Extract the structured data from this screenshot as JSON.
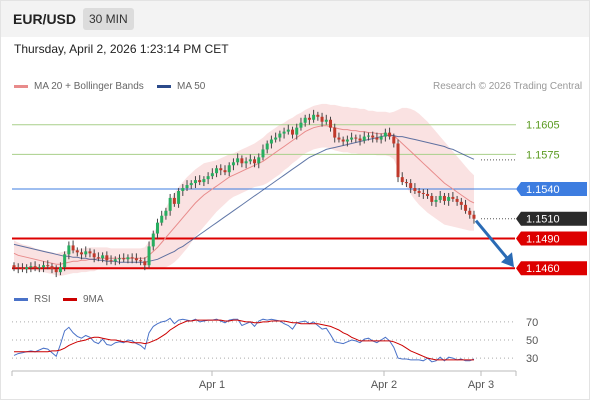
{
  "header": {
    "pair": "EUR/USD",
    "timeframe": "30 MIN",
    "datetime": "Thursday, April 2, 2026 1:23:14 PM CET"
  },
  "legend": {
    "ma20": "MA 20 + Bollinger Bands",
    "ma50": "MA 50",
    "copyright": "Research © 2026 Trading Central"
  },
  "rsi_legend": {
    "rsi": "RSI",
    "ma": "9MA"
  },
  "colors": {
    "bull": "#27ae60",
    "bear": "#c0392b",
    "ma20": "#e88b8b",
    "ma50": "#2b4a8a",
    "band": "#f6caca",
    "resistance": "#a8cf8a",
    "resistance_text": "#5a9a1f",
    "pivot": "#3d7de0",
    "support": "#dd0000",
    "last": "#2b2b2b",
    "arrow": "#2a6bb5",
    "rsi": "#4a72c8",
    "rsi_ma": "#cc0000"
  },
  "chart_data": [
    {
      "type": "candlestick",
      "title": "EUR/USD",
      "timeframe": "30 MIN",
      "ylim": [
        1.1442,
        1.1634
      ],
      "x_tick_labels": [
        "Apr 1",
        "Apr 2",
        "Apr 3"
      ],
      "closes": [
        1.1461,
        1.146,
        1.1459,
        1.1461,
        1.1462,
        1.146,
        1.1461,
        1.1463,
        1.1462,
        1.1459,
        1.1456,
        1.1461,
        1.1474,
        1.1483,
        1.1478,
        1.1476,
        1.1474,
        1.1477,
        1.1475,
        1.1471,
        1.147,
        1.1473,
        1.1468,
        1.1467,
        1.1469,
        1.147,
        1.1469,
        1.1471,
        1.147,
        1.1468,
        1.1467,
        1.1463,
        1.1482,
        1.1495,
        1.1506,
        1.1513,
        1.1518,
        1.1531,
        1.1525,
        1.1538,
        1.1541,
        1.1544,
        1.1546,
        1.1549,
        1.1547,
        1.155,
        1.1553,
        1.1556,
        1.1561,
        1.1559,
        1.1557,
        1.1564,
        1.1567,
        1.1571,
        1.1566,
        1.1568,
        1.157,
        1.1566,
        1.1572,
        1.158,
        1.1586,
        1.159,
        1.1592,
        1.1596,
        1.1598,
        1.16,
        1.1595,
        1.1602,
        1.1607,
        1.1612,
        1.161,
        1.1615,
        1.1613,
        1.1608,
        1.161,
        1.1602,
        1.1592,
        1.159,
        1.1588,
        1.159,
        1.1592,
        1.1591,
        1.1589,
        1.1593,
        1.1594,
        1.1592,
        1.159,
        1.1593,
        1.1597,
        1.1593,
        1.1586,
        1.1552,
        1.1547,
        1.1546,
        1.1541,
        1.1538,
        1.1536,
        1.1535,
        1.1533,
        1.1527,
        1.1529,
        1.1533,
        1.1528,
        1.1532,
        1.153,
        1.1527,
        1.1524,
        1.1518,
        1.1514,
        1.151
      ],
      "ma20": [
        1.1475,
        1.1473,
        1.1472,
        1.1471,
        1.147,
        1.1469,
        1.1468,
        1.1467,
        1.1466,
        1.1465,
        1.1464,
        1.1464,
        1.1465,
        1.1466,
        1.1467,
        1.1467,
        1.1468,
        1.1468,
        1.1469,
        1.1469,
        1.147,
        1.147,
        1.147,
        1.147,
        1.147,
        1.147,
        1.147,
        1.147,
        1.147,
        1.147,
        1.147,
        1.147,
        1.1473,
        1.1477,
        1.1481,
        1.1486,
        1.1491,
        1.1496,
        1.1501,
        1.1506,
        1.1511,
        1.1516,
        1.1521,
        1.1526,
        1.153,
        1.1534,
        1.1537,
        1.154,
        1.1543,
        1.1546,
        1.1549,
        1.1552,
        1.1554,
        1.1556,
        1.1558,
        1.156,
        1.1562,
        1.1564,
        1.1566,
        1.1568,
        1.1571,
        1.1574,
        1.1577,
        1.158,
        1.1583,
        1.1586,
        1.1589,
        1.1592,
        1.1595,
        1.1598,
        1.16,
        1.1602,
        1.1603,
        1.1604,
        1.1604,
        1.1603,
        1.1602,
        1.1601,
        1.16,
        1.16,
        1.1599,
        1.1599,
        1.1598,
        1.1598,
        1.1597,
        1.1597,
        1.1596,
        1.1596,
        1.1596,
        1.1595,
        1.1594,
        1.159,
        1.1586,
        1.1582,
        1.1578,
        1.1574,
        1.157,
        1.1566,
        1.1562,
        1.1558,
        1.1554,
        1.155,
        1.1546,
        1.1543,
        1.154,
        1.1537,
        1.1534,
        1.1531,
        1.1528,
        1.1526
      ],
      "ma50": [
        1.1484,
        1.1483,
        1.1482,
        1.1481,
        1.148,
        1.1479,
        1.1478,
        1.1477,
        1.1476,
        1.1475,
        1.1474,
        1.1473,
        1.1472,
        1.1472,
        1.1471,
        1.1471,
        1.147,
        1.147,
        1.1469,
        1.1469,
        1.1468,
        1.1468,
        1.1467,
        1.1467,
        1.1467,
        1.1466,
        1.1466,
        1.1466,
        1.1466,
        1.1466,
        1.1466,
        1.1466,
        1.1467,
        1.1468,
        1.1469,
        1.1471,
        1.1473,
        1.1475,
        1.1477,
        1.148,
        1.1482,
        1.1485,
        1.1488,
        1.1491,
        1.1494,
        1.1497,
        1.15,
        1.1503,
        1.1506,
        1.1509,
        1.1512,
        1.1515,
        1.1518,
        1.1521,
        1.1524,
        1.1527,
        1.153,
        1.1533,
        1.1536,
        1.1539,
        1.1542,
        1.1545,
        1.1548,
        1.1551,
        1.1554,
        1.1557,
        1.156,
        1.1563,
        1.1566,
        1.1569,
        1.1572,
        1.1574,
        1.1576,
        1.1578,
        1.158,
        1.1581,
        1.1582,
        1.1583,
        1.1584,
        1.1585,
        1.1586,
        1.1587,
        1.1588,
        1.1589,
        1.159,
        1.1591,
        1.1592,
        1.1593,
        1.1594,
        1.1594,
        1.1594,
        1.1593,
        1.1593,
        1.1592,
        1.1591,
        1.159,
        1.1589,
        1.1588,
        1.1587,
        1.1586,
        1.1585,
        1.1584,
        1.1583,
        1.1581,
        1.158,
        1.1578,
        1.1576,
        1.1574,
        1.1572,
        1.157
      ],
      "band_width": [
        0.0013,
        0.0013,
        0.0012,
        0.0012,
        0.0012,
        0.0011,
        0.0011,
        0.0011,
        0.0011,
        0.0011,
        0.0011,
        0.0012,
        0.0012,
        0.0012,
        0.0012,
        0.0012,
        0.0012,
        0.0012,
        0.0012,
        0.0012,
        0.0011,
        0.0011,
        0.0011,
        0.001,
        0.001,
        0.001,
        0.001,
        0.001,
        0.001,
        0.001,
        0.001,
        0.0011,
        0.0014,
        0.0018,
        0.0022,
        0.0026,
        0.003,
        0.0033,
        0.0035,
        0.0036,
        0.0036,
        0.0036,
        0.0035,
        0.0034,
        0.0033,
        0.0032,
        0.003,
        0.0028,
        0.0026,
        0.0025,
        0.0024,
        0.0023,
        0.0022,
        0.0022,
        0.0022,
        0.0022,
        0.0022,
        0.0022,
        0.0023,
        0.0024,
        0.0025,
        0.0025,
        0.0025,
        0.0025,
        0.0024,
        0.0024,
        0.0023,
        0.0023,
        0.0022,
        0.0022,
        0.0022,
        0.0022,
        0.0022,
        0.0022,
        0.0022,
        0.0022,
        0.0023,
        0.0023,
        0.0023,
        0.0023,
        0.0023,
        0.0023,
        0.0023,
        0.0023,
        0.0022,
        0.0022,
        0.0022,
        0.0022,
        0.0022,
        0.0022,
        0.0024,
        0.003,
        0.0036,
        0.004,
        0.0043,
        0.0045,
        0.0046,
        0.0046,
        0.0046,
        0.0045,
        0.0044,
        0.0043,
        0.0042,
        0.004,
        0.0038,
        0.0036,
        0.0034,
        0.0032,
        0.003,
        0.0028
      ],
      "levels": [
        {
          "label": "1.1605",
          "value": 1.1605,
          "kind": "resistance"
        },
        {
          "label": "1.1575",
          "value": 1.1575,
          "kind": "resistance"
        },
        {
          "label": "1.1540",
          "value": 1.154,
          "kind": "pivot"
        },
        {
          "label": "1.1510",
          "value": 1.151,
          "kind": "last"
        },
        {
          "label": "1.1490",
          "value": 1.149,
          "kind": "support"
        },
        {
          "label": "1.1460",
          "value": 1.146,
          "kind": "support"
        }
      ],
      "forecast_arrow": {
        "from": 1.151,
        "to": 1.146,
        "direction": "down"
      }
    },
    {
      "type": "line",
      "title": "RSI",
      "series": [
        {
          "name": "RSI",
          "values": [
            33,
            35,
            36,
            37,
            38,
            37,
            39,
            41,
            40,
            36,
            32,
            45,
            60,
            64,
            58,
            54,
            52,
            55,
            53,
            48,
            46,
            51,
            45,
            44,
            47,
            48,
            47,
            50,
            49,
            46,
            44,
            40,
            58,
            65,
            68,
            70,
            71,
            74,
            68,
            72,
            73,
            72,
            71,
            73,
            70,
            71,
            72,
            72,
            73,
            71,
            69,
            72,
            73,
            73,
            66,
            68,
            70,
            65,
            71,
            73,
            72,
            73,
            72,
            71,
            68,
            66,
            62,
            69,
            70,
            71,
            68,
            70,
            66,
            62,
            63,
            56,
            48,
            47,
            46,
            48,
            50,
            49,
            47,
            51,
            52,
            49,
            47,
            50,
            53,
            49,
            42,
            30,
            29,
            29,
            28,
            28,
            28,
            27,
            30,
            26,
            27,
            31,
            27,
            31,
            30,
            28,
            29,
            27,
            27,
            29
          ]
        },
        {
          "name": "9MA",
          "values": [
            37,
            37,
            37,
            37,
            37,
            37,
            37,
            37,
            37,
            38,
            38,
            39,
            41,
            44,
            46,
            48,
            49,
            50,
            52,
            53,
            53,
            52,
            51,
            50,
            50,
            49,
            48,
            48,
            47,
            47,
            47,
            46,
            47,
            49,
            51,
            54,
            57,
            61,
            64,
            67,
            69,
            71,
            71,
            72,
            72,
            72,
            72,
            72,
            72,
            72,
            71,
            71,
            72,
            72,
            71,
            70,
            70,
            69,
            69,
            70,
            70,
            71,
            71,
            71,
            71,
            70,
            69,
            69,
            68,
            68,
            68,
            68,
            68,
            67,
            66,
            65,
            63,
            61,
            58,
            56,
            53,
            51,
            49,
            49,
            49,
            49,
            49,
            49,
            49,
            49,
            48,
            46,
            44,
            41,
            38,
            36,
            34,
            32,
            30,
            29,
            28,
            28,
            28,
            28,
            28,
            28,
            28,
            28,
            28,
            28
          ]
        }
      ],
      "ylim": [
        18,
        82
      ],
      "y_tick_labels": [
        "70",
        "50",
        "30"
      ]
    }
  ]
}
